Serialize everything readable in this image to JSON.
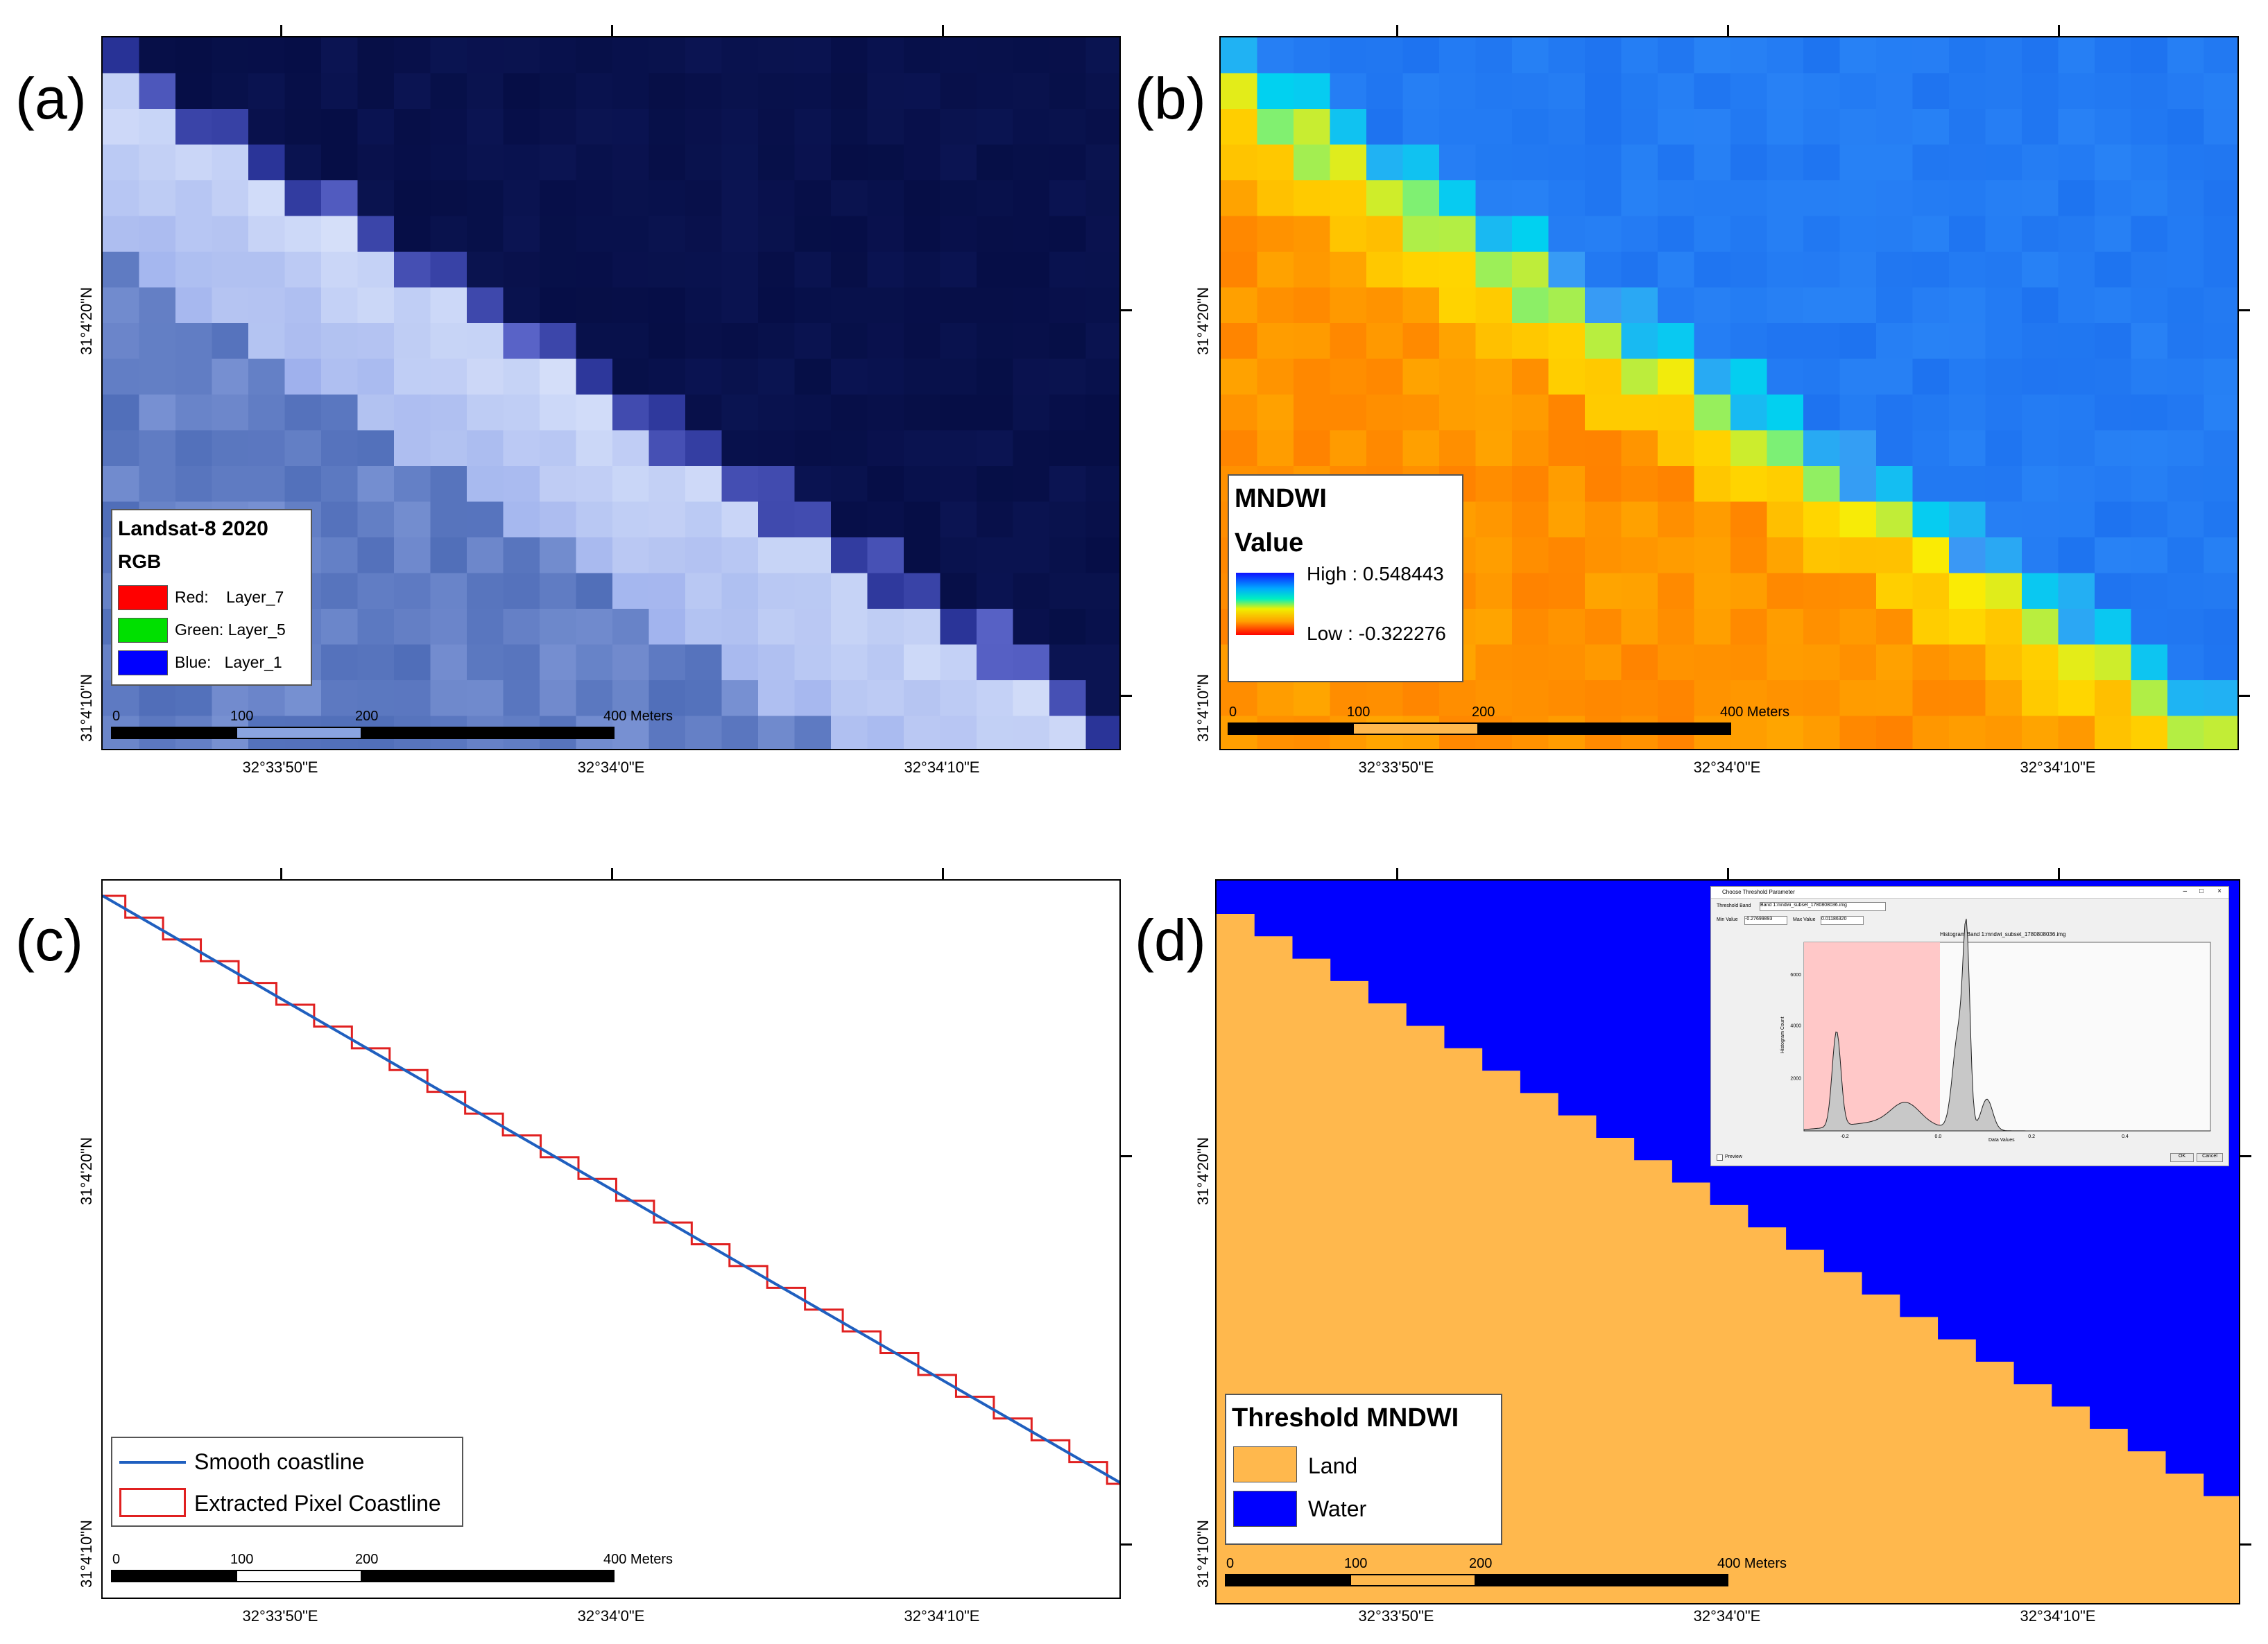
{
  "panels": {
    "a": {
      "label": "(a)"
    },
    "b": {
      "label": "(b)"
    },
    "c": {
      "label": "(c)"
    },
    "d": {
      "label": "(d)"
    }
  },
  "coords": {
    "lon1": "32°33'50\"E",
    "lon2": "32°34'0\"E",
    "lon3": "32°34'10\"E",
    "lat1": "31°4'20\"N",
    "lat2": "31°4'10\"N"
  },
  "scalebar": {
    "l0": "0",
    "l1": "100",
    "l2": "200",
    "l3": "400 Meters"
  },
  "legend_a": {
    "title": "Landsat-8 2020",
    "subtitle": "RGB",
    "items": [
      {
        "label": "Red:    Layer_7",
        "color": "#ff0000"
      },
      {
        "label": "Green: Layer_5",
        "color": "#00e000"
      },
      {
        "label": "Blue:   Layer_1",
        "color": "#0000ff"
      }
    ]
  },
  "legend_b": {
    "title": "MNDWI",
    "subtitle": "Value",
    "high": "High : 0.548443",
    "low": "Low : -0.322276"
  },
  "legend_c": {
    "items": [
      {
        "label": "Smooth coastline",
        "color": "#1f5fbf"
      },
      {
        "label": "Extracted Pixel Coastline",
        "color": "#e02020"
      }
    ]
  },
  "legend_d": {
    "title": "Threshold MNDWI",
    "items": [
      {
        "label": "Land",
        "color": "#ffb84d"
      },
      {
        "label": "Water",
        "color": "#0000ff"
      }
    ]
  },
  "inset": {
    "window_title": "Choose Threshold Parameter",
    "band_label": "Threshold Band",
    "band_value": "Band 1:mndwi_subset_1780808036.img",
    "min_label": "Min Value",
    "min_value": "-0.27699893",
    "max_label": "Max Value",
    "max_value": "0.01186320",
    "hist_title": "Histogram Band 1:mndwi_subset_1780808036.img",
    "x_axis": "Data Values",
    "y_axis": "Histogram Count",
    "x_ticks": [
      "-0.2",
      "0.0",
      "0.2",
      "0.4"
    ],
    "y_ticks": [
      "2000",
      "4000",
      "6000"
    ],
    "preview": "Preview",
    "ok": "OK",
    "cancel": "Cancel"
  },
  "colors": {
    "water_dark": "#06104a",
    "water_blue": "#0000ff",
    "land": "#ffb84d",
    "mndwi_water": "#2b86f5"
  }
}
